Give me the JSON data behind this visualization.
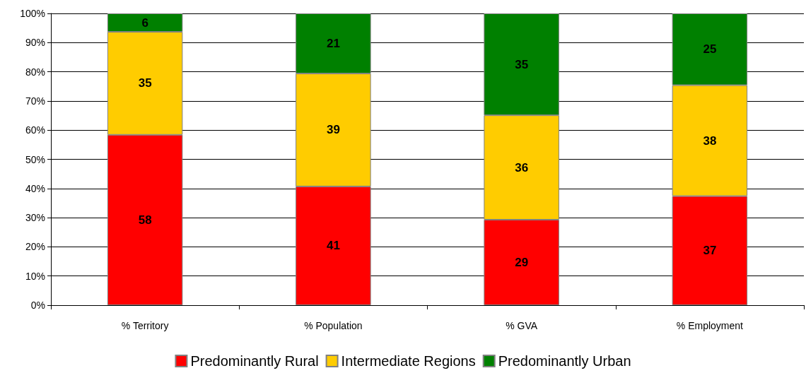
{
  "chart_data": {
    "type": "bar",
    "stacked": true,
    "categories": [
      "% Territory",
      "% Population",
      "% GVA",
      "% Employment"
    ],
    "series": [
      {
        "name": "Predominantly Rural",
        "color": "#ff0000",
        "values": [
          58.4,
          40.7,
          29.3,
          37.4
        ],
        "value_labels": [
          "58",
          "41",
          "29",
          "37"
        ]
      },
      {
        "name": "Intermediate Regions",
        "color": "#ffcc00",
        "values": [
          35.3,
          38.7,
          35.8,
          38
        ],
        "value_labels": [
          "35",
          "39",
          "36",
          "38"
        ]
      },
      {
        "name": "Predominantly Urban",
        "color": "#008000",
        "values": [
          6.3,
          20.6,
          34.9,
          24.6
        ],
        "value_labels": [
          "6",
          "21",
          "35",
          "25"
        ]
      }
    ],
    "ylim": [
      0,
      100
    ],
    "yticks": [
      {
        "value": 0,
        "label": "0%"
      },
      {
        "value": 10,
        "label": "10%"
      },
      {
        "value": 20,
        "label": "20%"
      },
      {
        "value": 30,
        "label": "30%"
      },
      {
        "value": 40,
        "label": "40%"
      },
      {
        "value": 50,
        "label": "50%"
      },
      {
        "value": 60,
        "label": "60%"
      },
      {
        "value": 70,
        "label": "70%"
      },
      {
        "value": 80,
        "label": "80%"
      },
      {
        "value": 90,
        "label": "90%"
      },
      {
        "value": 100,
        "label": "100%"
      }
    ],
    "grid": "y",
    "legend": "bottom"
  }
}
